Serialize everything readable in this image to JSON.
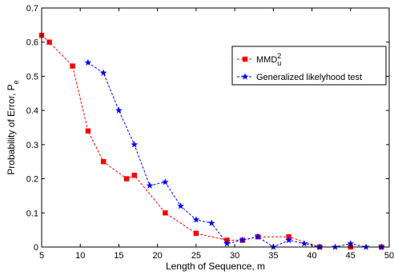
{
  "chart_data": {
    "type": "line",
    "title": "",
    "xlabel": "Length of Sequence, m",
    "ylabel": "Probability of Error, P",
    "ylabel_sub": "e",
    "xlim": [
      5,
      50
    ],
    "ylim": [
      0,
      0.7
    ],
    "xticks": [
      "5",
      "10",
      "15",
      "20",
      "25",
      "30",
      "35",
      "40",
      "45",
      "50"
    ],
    "yticks": [
      "0",
      "0.1",
      "0.2",
      "0.3",
      "0.4",
      "0.5",
      "0.6",
      "0.7"
    ],
    "grid": false,
    "legend_position": "top-right",
    "series": [
      {
        "name": "MMD",
        "name_sub": "u",
        "name_sup": "2",
        "color": "#ff0000",
        "marker": "square",
        "line_style": "dashed",
        "x": [
          5,
          6,
          9,
          11,
          13,
          16,
          17,
          21,
          25,
          29,
          31,
          33,
          37,
          41,
          45,
          49
        ],
        "y": [
          0.62,
          0.6,
          0.53,
          0.34,
          0.25,
          0.2,
          0.21,
          0.1,
          0.04,
          0.02,
          0.02,
          0.03,
          0.03,
          0.0,
          0.0,
          0.0
        ]
      },
      {
        "name": "Generalized likelyhood test",
        "color": "#0000ff",
        "marker": "star",
        "line_style": "dashed",
        "x": [
          11,
          13,
          15,
          17,
          19,
          21,
          23,
          25,
          27,
          29,
          31,
          33,
          35,
          37,
          39,
          41,
          43,
          45,
          47,
          49
        ],
        "y": [
          0.54,
          0.51,
          0.4,
          0.3,
          0.18,
          0.19,
          0.12,
          0.08,
          0.07,
          0.01,
          0.02,
          0.03,
          0.0,
          0.02,
          0.01,
          0.0,
          0.0,
          0.01,
          0.0,
          0.0
        ]
      }
    ]
  }
}
